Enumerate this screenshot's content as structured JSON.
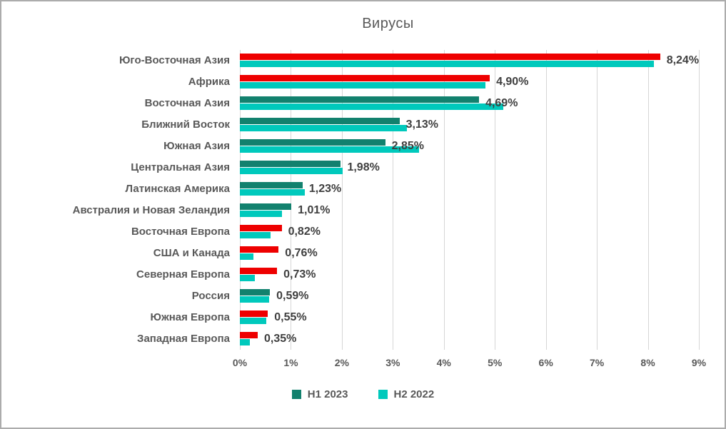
{
  "chart_data": {
    "type": "bar",
    "orientation": "horizontal",
    "title": "Вирусы",
    "x_axis": {
      "min": 0,
      "max": 9,
      "step": 1,
      "tick_labels": [
        "0%",
        "1%",
        "2%",
        "3%",
        "4%",
        "5%",
        "6%",
        "7%",
        "8%",
        "9%"
      ],
      "grid": true
    },
    "legend_position": "bottom",
    "colors": {
      "h1_2023": "#12816E",
      "h2_2022": "#00C9BC",
      "h1_2023_highlight": "#EE0000",
      "gridline": "#D6D6D6",
      "text_gray": "#595959",
      "value_label": "#3F3F3F"
    },
    "categories": [
      "Юго-Восточная Азия",
      "Африка",
      "Восточная Азия",
      "Ближний Восток",
      "Южная Азия",
      "Центральная Азия",
      "Латинская Америка",
      "Австралия и Новая Зеландия",
      "Восточная Европа",
      "США и Канада",
      "Северная Европа",
      "Россия",
      "Южная Европа",
      "Западная Европа"
    ],
    "series": [
      {
        "name": "H1 2023",
        "values": [
          8.24,
          4.9,
          4.69,
          3.13,
          2.85,
          1.98,
          1.23,
          1.01,
          0.82,
          0.76,
          0.73,
          0.59,
          0.55,
          0.35
        ],
        "value_labels": [
          "8,24%",
          "4,90%",
          "4,69%",
          "3,13%",
          "2,85%",
          "1,98%",
          "1,23%",
          "1,01%",
          "0,82%",
          "0,76%",
          "0,73%",
          "0,59%",
          "0,55%",
          "0,35%"
        ],
        "bar_colors": [
          "#EE0000",
          "#EE0000",
          "#12816E",
          "#12816E",
          "#12816E",
          "#12816E",
          "#12816E",
          "#12816E",
          "#EE0000",
          "#EE0000",
          "#EE0000",
          "#12816E",
          "#EE0000",
          "#EE0000"
        ]
      },
      {
        "name": "H2 2022",
        "values": [
          8.12,
          4.82,
          5.17,
          3.27,
          3.52,
          2.02,
          1.27,
          0.83,
          0.6,
          0.27,
          0.29,
          0.58,
          0.52,
          0.2
        ],
        "bar_colors": [
          "#00C9BC",
          "#00C9BC",
          "#00C9BC",
          "#00C9BC",
          "#00C9BC",
          "#00C9BC",
          "#00C9BC",
          "#00C9BC",
          "#00C9BC",
          "#00C9BC",
          "#00C9BC",
          "#00C9BC",
          "#00C9BC",
          "#00C9BC"
        ]
      }
    ],
    "legend": [
      {
        "name": "H1 2023",
        "color": "#12816E"
      },
      {
        "name": "H2 2022",
        "color": "#00C9BC"
      }
    ]
  }
}
